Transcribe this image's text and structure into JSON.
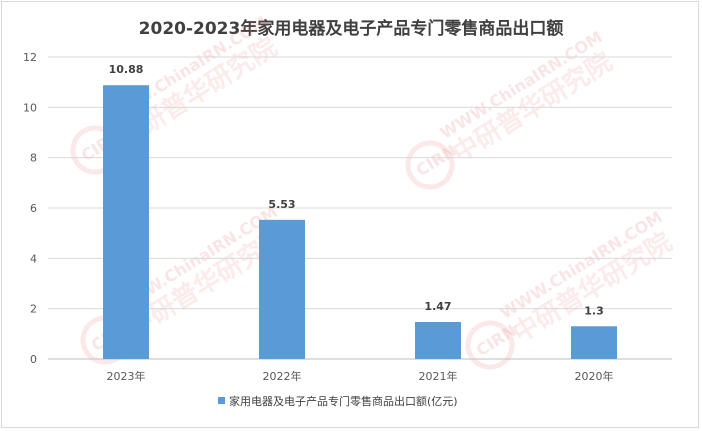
{
  "chart_data": {
    "type": "bar",
    "title": "2020-2023年家用电器及电子产品专门零售商品出口额",
    "categories": [
      "2023年",
      "2022年",
      "2021年",
      "2020年"
    ],
    "series": [
      {
        "name": "家用电器及电子产品专门零售商品出口额(亿元)",
        "values": [
          10.88,
          5.53,
          1.47,
          1.3
        ]
      }
    ],
    "data_labels": [
      "10.88",
      "5.53",
      "1.47",
      "1.3"
    ],
    "y_ticks": [
      "0",
      "2",
      "4",
      "6",
      "8",
      "10",
      "12"
    ],
    "ylim": [
      0,
      12
    ],
    "xlabel": "",
    "ylabel": "",
    "grid": true,
    "legend": "bottom",
    "bar_color": "#5b9bd5"
  },
  "watermark": {
    "logo_text": "CIRN",
    "url_text": "WWW.ChinaIRN.COM",
    "cn_text": "中研普华研究院"
  }
}
